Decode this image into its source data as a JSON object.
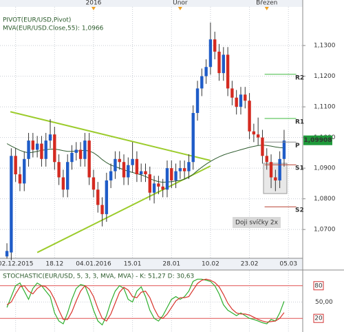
{
  "chart_data": {
    "type": "candlestick",
    "title": "PIVOT(EUR/USD,Pivot)",
    "subtitle": "MVA(EUR/USD.Close,55): 1,0966",
    "xlim": [
      -1.6,
      68.3
    ],
    "xticks": [
      {
        "value": 2,
        "label": "02.12.2015"
      },
      {
        "value": 11,
        "label": "18.12"
      },
      {
        "value": 20,
        "label": "04.01.2016"
      },
      {
        "value": 29,
        "label": "15.01"
      },
      {
        "value": 38,
        "label": "28.01"
      },
      {
        "value": 47,
        "label": "10.02"
      },
      {
        "value": 56,
        "label": "23.02"
      },
      {
        "value": 65,
        "label": "05.03"
      }
    ],
    "top_markers": [
      {
        "value": 20,
        "label": "2016"
      },
      {
        "value": 40,
        "label": "Únor"
      },
      {
        "value": 60,
        "label": "Březen"
      }
    ],
    "ylim": [
      1.0606,
      1.1426
    ],
    "yticks": [
      {
        "value": 1.07,
        "label": "1,0700"
      },
      {
        "value": 1.08,
        "label": "1,0800"
      },
      {
        "value": 1.09,
        "label": "1,0900"
      },
      {
        "value": 1.1,
        "label": "1,1000"
      },
      {
        "value": 1.11,
        "label": "1,1100"
      },
      {
        "value": 1.12,
        "label": "1,1200"
      },
      {
        "value": 1.13,
        "label": "1,1300"
      }
    ],
    "grid": true,
    "up_color": "#1f5cc8",
    "down_color": "#d42a20",
    "open": [
      1.0612,
      1.0625,
      1.094,
      1.088,
      1.085,
      1.093,
      1.099,
      1.096,
      1.098,
      1.093,
      1.099,
      1.101,
      1.092,
      1.087,
      1.083,
      1.092,
      1.095,
      1.096,
      1.093,
      1.099,
      1.087,
      1.083,
      1.078,
      1.075,
      1.086,
      1.089,
      1.093,
      1.092,
      1.087,
      1.091,
      1.093,
      1.088,
      1.089,
      1.088,
      1.082,
      1.085,
      1.084,
      1.083,
      1.09,
      1.086,
      1.089,
      1.09,
      1.089,
      1.092,
      1.108,
      1.116,
      1.12,
      1.123,
      1.132,
      1.128,
      1.121,
      1.127,
      1.116,
      1.113,
      1.11,
      1.114,
      1.112,
      1.102,
      1.101,
      1.1,
      1.094,
      1.092,
      1.087,
      1.086,
      1.093
    ],
    "high": [
      1.0655,
      1.0965,
      1.0965,
      1.0905,
      1.0955,
      1.1015,
      1.1015,
      1.1005,
      1.1005,
      1.1015,
      1.106,
      1.1035,
      1.0945,
      1.0895,
      1.0945,
      1.0975,
      1.0985,
      1.0985,
      1.1015,
      1.1015,
      1.0895,
      1.0855,
      1.0805,
      1.0885,
      1.0915,
      1.0955,
      1.0955,
      1.0945,
      1.0935,
      1.0985,
      1.0955,
      1.0915,
      1.0915,
      1.0905,
      1.0875,
      1.0875,
      1.0865,
      1.0925,
      1.0925,
      1.0915,
      1.0925,
      1.0925,
      1.0945,
      1.1105,
      1.1185,
      1.1225,
      1.1255,
      1.1375,
      1.1345,
      1.1305,
      1.1295,
      1.1295,
      1.1185,
      1.1155,
      1.1165,
      1.1165,
      1.1145,
      1.1045,
      1.1065,
      1.1025,
      1.0965,
      1.0945,
      1.0895,
      1.0955,
      1.1025
    ],
    "low": [
      1.0605,
      1.06,
      1.0855,
      1.0825,
      1.0825,
      1.0905,
      1.0935,
      1.0935,
      1.0905,
      1.0905,
      1.0965,
      1.0895,
      1.0845,
      1.0805,
      1.0805,
      1.0895,
      1.0925,
      1.0905,
      1.0905,
      1.0845,
      1.0805,
      1.0755,
      1.071,
      1.0725,
      1.0835,
      1.0865,
      1.0895,
      1.0845,
      1.0845,
      1.0885,
      1.0855,
      1.0855,
      1.0855,
      1.0795,
      1.0785,
      1.0815,
      1.0805,
      1.0805,
      1.0835,
      1.0835,
      1.0865,
      1.0865,
      1.0865,
      1.0895,
      1.1055,
      1.1135,
      1.1175,
      1.1205,
      1.1255,
      1.1185,
      1.1185,
      1.1135,
      1.1105,
      1.1075,
      1.1075,
      1.1095,
      1.0995,
      1.0985,
      1.0975,
      1.0915,
      1.0895,
      1.0835,
      1.0825,
      1.0835,
      1.0905
    ],
    "close": [
      1.063,
      1.094,
      1.088,
      1.085,
      1.093,
      1.099,
      1.096,
      1.098,
      1.093,
      1.099,
      1.101,
      1.092,
      1.087,
      1.083,
      1.092,
      1.095,
      1.096,
      1.093,
      1.099,
      1.087,
      1.083,
      1.078,
      1.075,
      1.086,
      1.089,
      1.093,
      1.092,
      1.087,
      1.091,
      1.093,
      1.088,
      1.089,
      1.088,
      1.082,
      1.085,
      1.084,
      1.083,
      1.09,
      1.086,
      1.089,
      1.09,
      1.089,
      1.092,
      1.108,
      1.116,
      1.12,
      1.123,
      1.132,
      1.128,
      1.121,
      1.127,
      1.116,
      1.113,
      1.11,
      1.114,
      1.112,
      1.102,
      1.101,
      1.1,
      1.094,
      1.092,
      1.087,
      1.086,
      1.093,
      1.099
    ],
    "ma": {
      "color": "#2d5a2d",
      "values": [
        1.098,
        1.0972,
        1.0965,
        1.0958,
        1.0953,
        1.095,
        1.0952,
        1.0955,
        1.0958,
        1.096,
        1.0962,
        1.0962,
        1.096,
        1.0957,
        1.0955,
        1.0955,
        1.0956,
        1.0957,
        1.0958,
        1.0956,
        1.095,
        1.094,
        1.0928,
        1.0918,
        1.091,
        1.0905,
        1.09,
        1.0895,
        1.089,
        1.0886,
        1.0882,
        1.0878,
        1.0873,
        1.0866,
        1.086,
        1.0856,
        1.0854,
        1.0855,
        1.0856,
        1.0858,
        1.086,
        1.0864,
        1.087,
        1.088,
        1.0892,
        1.0903,
        1.0913,
        1.0922,
        1.093,
        1.0937,
        1.0943,
        1.0948,
        1.0952,
        1.0956,
        1.096,
        1.0964,
        1.0968,
        1.0971,
        1.0974,
        1.0975,
        1.0974,
        1.0972,
        1.0969,
        1.0967,
        1.0966
      ]
    },
    "trendlines": [
      {
        "color": "#9ccc2c",
        "x": [
          0.8,
          47
        ],
        "values": [
          1.1084,
          1.0925
        ]
      },
      {
        "color": "#9ccc2c",
        "x": [
          7,
          47
        ],
        "values": [
          1.0625,
          1.0907
        ]
      }
    ],
    "pivots": [
      {
        "name": "R2",
        "value": 1.1206,
        "color": "#3cb83c"
      },
      {
        "name": "R1",
        "value": 1.1062,
        "color": "#3cb83c"
      },
      {
        "name": "P",
        "value": 1.0985,
        "color": "#888888"
      },
      {
        "name": "S1",
        "value": 1.0911,
        "color": "#b84030"
      },
      {
        "name": "S2",
        "value": 1.0774,
        "color": "#b84030"
      }
    ],
    "last_price": {
      "value": 1.09908,
      "label": "1,09908",
      "color": "#1f9a3a"
    },
    "annotation": "Doji svíčky 2x",
    "stochastic": {
      "title": "STOCHASTIC(EUR/USD, 5, 3, 3, MVA, MVA) - K: 51,27 D: 30,63",
      "ylim": [
        0,
        100
      ],
      "yticks": [
        {
          "value": 20,
          "label": "20"
        },
        {
          "value": 50,
          "label": "50,00"
        },
        {
          "value": 80,
          "label": "80"
        }
      ],
      "series": [
        {
          "name": "K",
          "color": "#2cae2c",
          "values": [
            40,
            60,
            80,
            85,
            70,
            55,
            75,
            85,
            80,
            70,
            60,
            30,
            15,
            10,
            30,
            55,
            75,
            82,
            80,
            60,
            35,
            15,
            8,
            25,
            50,
            70,
            80,
            75,
            55,
            50,
            70,
            78,
            60,
            35,
            20,
            15,
            25,
            40,
            55,
            60,
            55,
            60,
            70,
            88,
            92,
            92,
            90,
            88,
            80,
            65,
            45,
            35,
            30,
            25,
            30,
            25,
            20,
            18,
            15,
            12,
            10,
            18,
            15,
            30,
            51.27
          ]
        },
        {
          "name": "D",
          "color": "#d8322a",
          "values": [
            45,
            50,
            65,
            78,
            80,
            70,
            65,
            75,
            80,
            78,
            70,
            55,
            35,
            18,
            18,
            32,
            52,
            70,
            80,
            74,
            60,
            38,
            20,
            15,
            28,
            48,
            68,
            77,
            72,
            60,
            58,
            68,
            70,
            58,
            38,
            23,
            20,
            28,
            40,
            52,
            58,
            58,
            60,
            72,
            84,
            90,
            92,
            90,
            86,
            78,
            64,
            48,
            37,
            30,
            28,
            28,
            26,
            22,
            18,
            15,
            13,
            14,
            15,
            20,
            30.63
          ]
        }
      ]
    }
  }
}
